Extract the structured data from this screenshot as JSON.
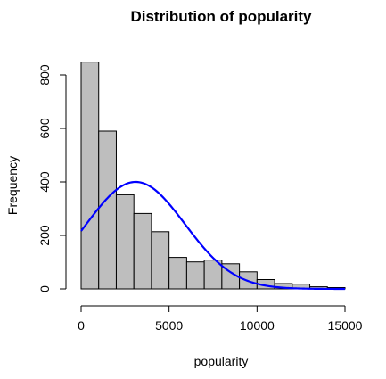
{
  "chart_data": {
    "type": "bar",
    "title": "Distribution of popularity",
    "xlabel": "popularity",
    "ylabel": "Frequency",
    "bin_edges": [
      0,
      1000,
      2000,
      3000,
      4000,
      5000,
      6000,
      7000,
      8000,
      9000,
      10000,
      11000,
      12000,
      13000,
      14000,
      15000
    ],
    "values": [
      848,
      590,
      352,
      282,
      214,
      118,
      101,
      108,
      94,
      64,
      35,
      20,
      18,
      8,
      5
    ],
    "bar_fill": "#bebebe",
    "bar_stroke": "#000000",
    "xlim": [
      0,
      15000
    ],
    "ylim": [
      0,
      860
    ],
    "x_ticks": [
      0,
      5000,
      10000,
      15000
    ],
    "y_ticks": [
      0,
      200,
      400,
      600,
      800
    ],
    "overlay_curve": {
      "type": "normal_density_scaled",
      "mean": 3100,
      "sd": 2800,
      "peak": 400,
      "color": "#0000ff",
      "x_range": [
        0,
        15000
      ]
    }
  }
}
